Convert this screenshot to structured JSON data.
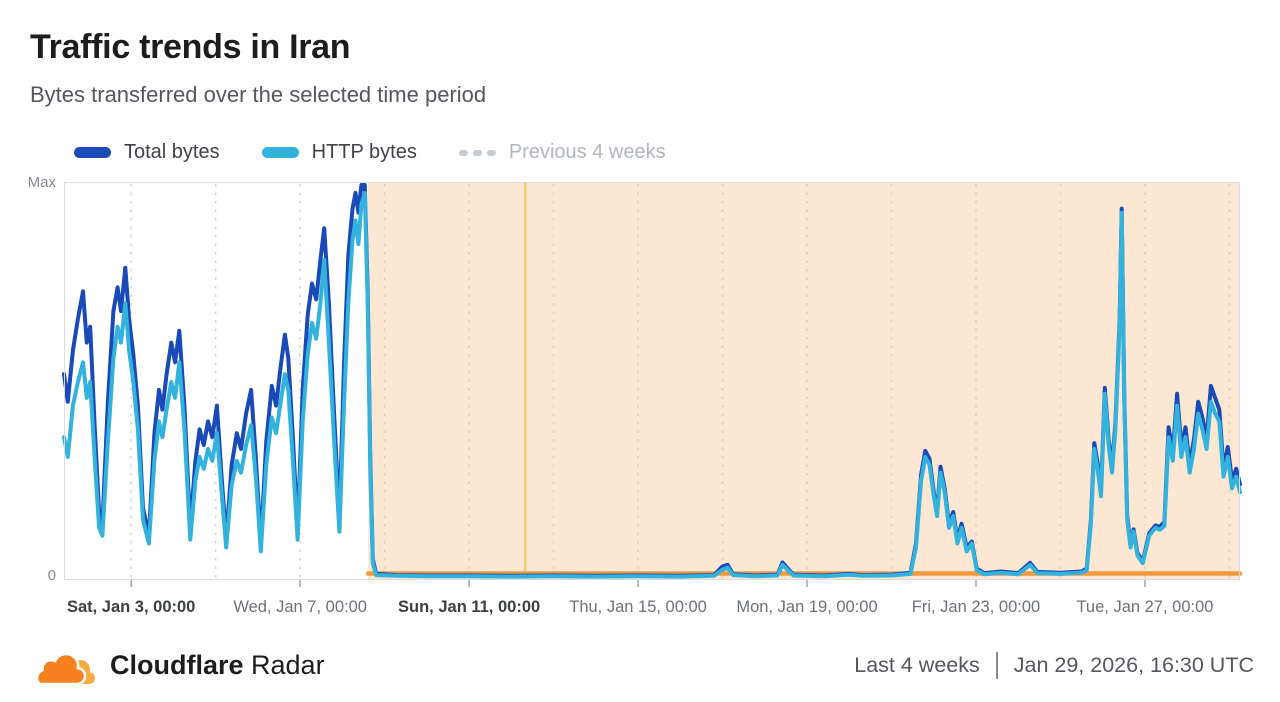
{
  "header": {
    "title": "Traffic trends in Iran",
    "subtitle": "Bytes transferred over the selected time period"
  },
  "legend": [
    {
      "label": "Total bytes",
      "color": "#1a49b8",
      "style": "solid"
    },
    {
      "label": "HTTP bytes",
      "color": "#32b2dc",
      "style": "solid"
    },
    {
      "label": "Previous 4 weeks",
      "color": "#c6cbd1",
      "style": "dashed"
    }
  ],
  "footer": {
    "brand_bold": "Cloudflare",
    "brand_regular": "Radar",
    "range_label": "Last 4 weeks",
    "timestamp": "Jan 29, 2026, 16:30 UTC",
    "logo_colors": {
      "cloud": "#f6821f",
      "cloud_light": "#fbad41"
    }
  },
  "chart_data": {
    "type": "line",
    "title": "Traffic trends in Iran",
    "ylabel_top": "Max",
    "ylabel_bottom": "0",
    "y_range": [
      0,
      100
    ],
    "x_unit": "days since Jan 1, 2026 00:00",
    "x_domain_days": [
      0.41,
      28.25
    ],
    "grid": true,
    "grid_color": "#d6d6d6",
    "grid_color_shaded": "#ecceab",
    "gridline_days": [
      2,
      4,
      6,
      8,
      10,
      12,
      14,
      16,
      18,
      20,
      22,
      24,
      26,
      28
    ],
    "x_ticks": [
      {
        "label": "Sat, Jan 3, 00:00",
        "day": 2,
        "emphasis": true
      },
      {
        "label": "Wed, Jan 7, 00:00",
        "day": 6,
        "emphasis": false
      },
      {
        "label": "Sun, Jan 11, 00:00",
        "day": 10,
        "emphasis": true
      },
      {
        "label": "Thu, Jan 15, 00:00",
        "day": 14,
        "emphasis": false
      },
      {
        "label": "Mon, Jan 19, 00:00",
        "day": 18,
        "emphasis": false
      },
      {
        "label": "Fri, Jan 23, 00:00",
        "day": 22,
        "emphasis": false
      },
      {
        "label": "Tue, Jan 27, 00:00",
        "day": 26,
        "emphasis": false
      }
    ],
    "anomaly_region": {
      "start_day": 7.61,
      "end_day": 28.25,
      "fill": "#fbe7d2"
    },
    "event_line": {
      "day": 11.33,
      "color": "#f2c870"
    },
    "baseline_annotation": {
      "start_day": 7.61,
      "end_day": 28.25,
      "value": 1.5,
      "color": "#f0993f"
    },
    "x": [
      0.41,
      0.5,
      0.62,
      0.74,
      0.86,
      0.95,
      1.03,
      1.14,
      1.24,
      1.32,
      1.45,
      1.58,
      1.68,
      1.76,
      1.86,
      1.95,
      2.05,
      2.16,
      2.28,
      2.42,
      2.55,
      2.66,
      2.74,
      2.84,
      2.95,
      3.04,
      3.14,
      3.26,
      3.4,
      3.52,
      3.62,
      3.72,
      3.82,
      3.92,
      4.03,
      4.14,
      4.25,
      4.38,
      4.5,
      4.6,
      4.72,
      4.84,
      4.95,
      5.07,
      5.2,
      5.33,
      5.43,
      5.54,
      5.64,
      5.72,
      5.83,
      5.94,
      6.06,
      6.18,
      6.28,
      6.38,
      6.48,
      6.57,
      6.68,
      6.8,
      6.93,
      7.04,
      7.14,
      7.24,
      7.31,
      7.38,
      7.45,
      7.53,
      7.6,
      7.66,
      7.72,
      7.8,
      8.3,
      9.0,
      10.0,
      11.0,
      12.0,
      13.0,
      14.0,
      15.0,
      15.8,
      16.0,
      16.12,
      16.25,
      16.8,
      17.3,
      17.42,
      17.55,
      17.68,
      18.4,
      19.0,
      19.3,
      20.0,
      20.45,
      20.58,
      20.7,
      20.8,
      20.9,
      21.0,
      21.08,
      21.16,
      21.26,
      21.36,
      21.46,
      21.56,
      21.66,
      21.78,
      21.9,
      22.02,
      22.2,
      22.6,
      23.0,
      23.28,
      23.45,
      24.0,
      24.5,
      24.62,
      24.72,
      24.8,
      24.88,
      24.96,
      25.05,
      25.14,
      25.22,
      25.3,
      25.4,
      25.45,
      25.51,
      25.58,
      25.66,
      25.73,
      25.82,
      25.95,
      26.1,
      26.25,
      26.35,
      26.46,
      26.56,
      26.66,
      26.76,
      26.86,
      26.96,
      27.06,
      27.16,
      27.26,
      27.36,
      27.46,
      27.56,
      27.66,
      27.76,
      27.86,
      27.96,
      28.06,
      28.16,
      28.25
    ],
    "series": [
      {
        "name": "Total bytes",
        "color": "#1a49b8",
        "values": [
          52,
          45,
          58,
          66,
          73,
          60,
          64,
          38,
          17,
          14,
          45,
          68,
          74,
          68,
          79,
          66,
          57,
          44,
          18,
          11,
          37,
          48,
          43,
          52,
          60,
          55,
          63,
          44,
          13,
          30,
          38,
          34,
          40,
          36,
          44,
          26,
          10,
          29,
          37,
          33,
          42,
          48,
          31,
          9,
          35,
          49,
          44,
          54,
          62,
          56,
          36,
          12,
          48,
          67,
          75,
          71,
          81,
          89,
          70,
          43,
          15,
          55,
          82,
          94,
          98,
          93,
          100,
          100,
          73,
          30,
          5,
          1.3,
          1.0,
          0.9,
          0.9,
          0.8,
          0.9,
          0.8,
          0.9,
          0.8,
          1.0,
          3.2,
          3.6,
          1.2,
          0.9,
          1.1,
          4.2,
          2.6,
          1.1,
          0.9,
          1.3,
          1.0,
          1.1,
          1.6,
          9,
          26.5,
          32.5,
          30.5,
          22,
          17,
          28.5,
          23,
          14,
          17,
          10,
          14,
          8,
          9.5,
          2.6,
          1.5,
          1.9,
          1.5,
          4.1,
          1.8,
          1.6,
          1.9,
          2.7,
          15,
          34.5,
          29.5,
          22,
          48.5,
          35.5,
          28.5,
          39.5,
          65.5,
          94,
          46,
          16,
          8.6,
          12.6,
          6.6,
          4.5,
          11.6,
          13.6,
          13.2,
          14.5,
          38.5,
          32,
          47,
          33.5,
          38.5,
          29,
          35.5,
          45,
          41,
          35.5,
          49,
          46,
          43,
          28,
          33.5,
          25,
          28,
          24
        ]
      },
      {
        "name": "HTTP bytes",
        "color": "#32b2dc",
        "values": [
          36,
          31,
          44,
          50,
          55,
          46,
          50,
          30,
          13,
          11,
          35,
          56,
          64,
          60,
          70,
          58,
          50,
          38,
          15,
          9,
          30,
          40,
          36,
          43,
          50,
          46,
          55,
          38,
          10,
          25,
          31,
          28,
          33,
          30,
          37,
          22,
          8,
          24,
          30,
          27,
          34,
          39,
          26,
          7,
          29,
          41,
          37,
          45,
          52,
          48,
          30,
          10,
          40,
          57,
          65,
          61,
          70,
          81,
          60,
          36,
          12,
          45,
          70,
          86,
          91,
          85,
          95,
          98,
          70,
          28,
          4,
          1,
          0.8,
          0.7,
          0.7,
          0.6,
          0.7,
          0.6,
          0.7,
          0.6,
          0.8,
          2.4,
          2.9,
          1.0,
          0.7,
          0.9,
          3.6,
          2.2,
          0.9,
          0.7,
          1.1,
          0.8,
          0.9,
          1.3,
          8,
          25,
          31,
          29,
          21,
          16,
          27,
          22,
          13,
          16,
          9,
          13,
          7,
          9,
          2.2,
          1.2,
          1.6,
          1.2,
          3.6,
          1.5,
          1.3,
          1.6,
          2.2,
          14,
          33,
          28,
          21,
          47,
          34,
          27,
          38,
          64,
          93,
          45,
          15,
          8,
          12,
          6,
          4,
          11,
          13,
          12.5,
          13.5,
          36,
          30,
          44,
          31,
          36,
          27,
          33,
          42,
          38,
          33,
          45,
          42,
          40,
          26,
          31,
          23,
          26,
          22
        ]
      }
    ],
    "legend_position": "top-left"
  }
}
